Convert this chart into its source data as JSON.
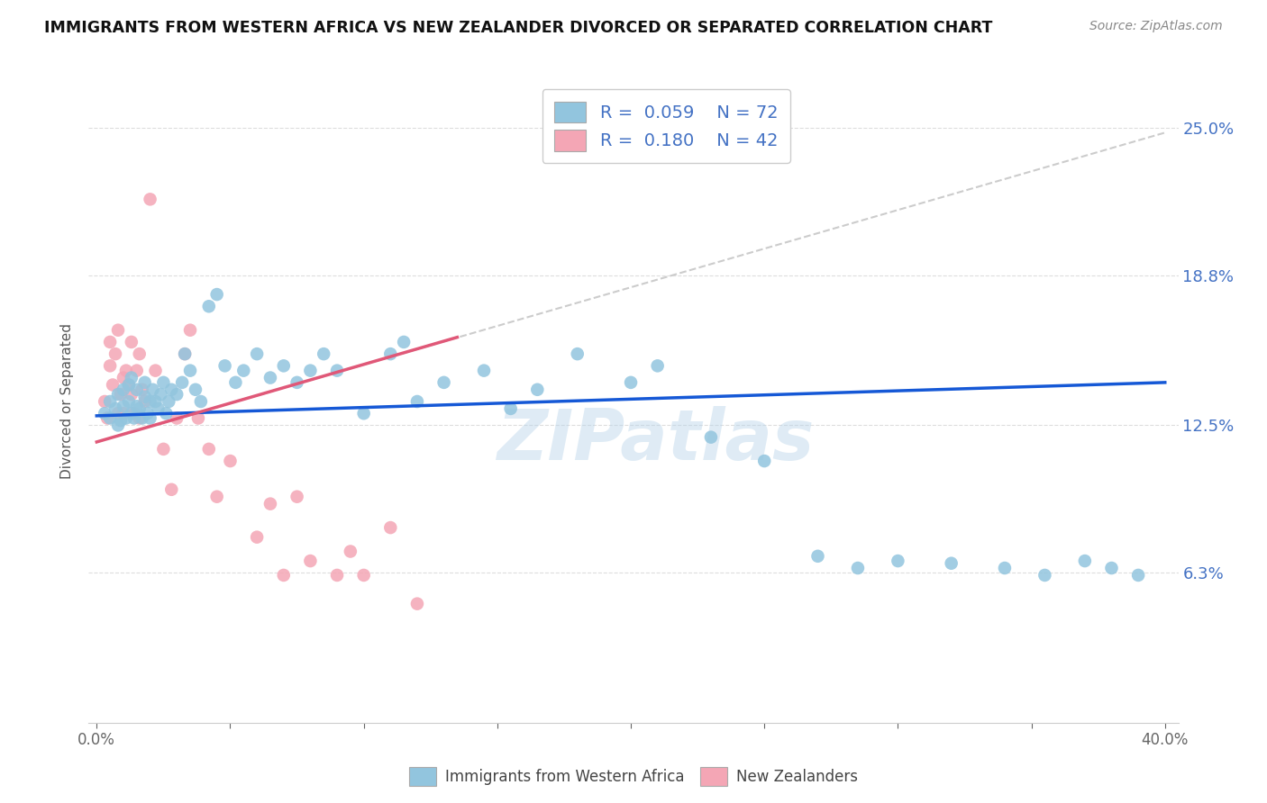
{
  "title": "IMMIGRANTS FROM WESTERN AFRICA VS NEW ZEALANDER DIVORCED OR SEPARATED CORRELATION CHART",
  "source": "Source: ZipAtlas.com",
  "ylabel": "Divorced or Separated",
  "ytick_labels": [
    "6.3%",
    "12.5%",
    "18.8%",
    "25.0%"
  ],
  "ytick_values": [
    0.063,
    0.125,
    0.188,
    0.25
  ],
  "xlim": [
    0.0,
    0.4
  ],
  "ylim": [
    0.0,
    0.265
  ],
  "blue_color": "#92c5de",
  "pink_color": "#f4a6b5",
  "line_blue": "#1558d6",
  "line_pink": "#e05878",
  "dashed_color": "#cccccc",
  "watermark": "ZIPatlas",
  "blue_scatter_x": [
    0.003,
    0.005,
    0.005,
    0.007,
    0.008,
    0.008,
    0.009,
    0.01,
    0.01,
    0.011,
    0.012,
    0.012,
    0.013,
    0.013,
    0.014,
    0.015,
    0.015,
    0.016,
    0.017,
    0.018,
    0.018,
    0.019,
    0.02,
    0.02,
    0.021,
    0.022,
    0.023,
    0.024,
    0.025,
    0.026,
    0.027,
    0.028,
    0.03,
    0.032,
    0.033,
    0.035,
    0.037,
    0.039,
    0.042,
    0.045,
    0.048,
    0.052,
    0.055,
    0.06,
    0.065,
    0.07,
    0.075,
    0.08,
    0.085,
    0.09,
    0.1,
    0.11,
    0.115,
    0.12,
    0.13,
    0.145,
    0.155,
    0.165,
    0.18,
    0.2,
    0.21,
    0.23,
    0.25,
    0.27,
    0.285,
    0.3,
    0.32,
    0.34,
    0.355,
    0.37,
    0.38,
    0.39
  ],
  "blue_scatter_y": [
    0.13,
    0.135,
    0.128,
    0.132,
    0.125,
    0.138,
    0.127,
    0.133,
    0.14,
    0.128,
    0.135,
    0.142,
    0.13,
    0.145,
    0.128,
    0.133,
    0.14,
    0.132,
    0.128,
    0.137,
    0.143,
    0.13,
    0.135,
    0.128,
    0.14,
    0.135,
    0.132,
    0.138,
    0.143,
    0.13,
    0.135,
    0.14,
    0.138,
    0.143,
    0.155,
    0.148,
    0.14,
    0.135,
    0.175,
    0.18,
    0.15,
    0.143,
    0.148,
    0.155,
    0.145,
    0.15,
    0.143,
    0.148,
    0.155,
    0.148,
    0.13,
    0.155,
    0.16,
    0.135,
    0.143,
    0.148,
    0.132,
    0.14,
    0.155,
    0.143,
    0.15,
    0.12,
    0.11,
    0.07,
    0.065,
    0.068,
    0.067,
    0.065,
    0.062,
    0.068,
    0.065,
    0.062
  ],
  "pink_scatter_x": [
    0.003,
    0.004,
    0.005,
    0.005,
    0.006,
    0.007,
    0.008,
    0.008,
    0.009,
    0.01,
    0.01,
    0.011,
    0.012,
    0.013,
    0.013,
    0.014,
    0.015,
    0.016,
    0.016,
    0.017,
    0.018,
    0.02,
    0.022,
    0.025,
    0.028,
    0.03,
    0.033,
    0.035,
    0.038,
    0.042,
    0.045,
    0.05,
    0.06,
    0.065,
    0.07,
    0.075,
    0.08,
    0.09,
    0.095,
    0.1,
    0.11,
    0.12
  ],
  "pink_scatter_y": [
    0.135,
    0.128,
    0.15,
    0.16,
    0.142,
    0.155,
    0.13,
    0.165,
    0.138,
    0.145,
    0.13,
    0.148,
    0.142,
    0.16,
    0.138,
    0.13,
    0.148,
    0.155,
    0.128,
    0.14,
    0.135,
    0.22,
    0.148,
    0.115,
    0.098,
    0.128,
    0.155,
    0.165,
    0.128,
    0.115,
    0.095,
    0.11,
    0.078,
    0.092,
    0.062,
    0.095,
    0.068,
    0.062,
    0.072,
    0.062,
    0.082,
    0.05
  ],
  "blue_line_x": [
    0.0,
    0.4
  ],
  "blue_line_y": [
    0.129,
    0.143
  ],
  "pink_line_x": [
    0.0,
    0.135
  ],
  "pink_line_y": [
    0.118,
    0.162
  ],
  "dashed_line_x": [
    0.0,
    0.4
  ],
  "dashed_line_y": [
    0.118,
    0.248
  ]
}
